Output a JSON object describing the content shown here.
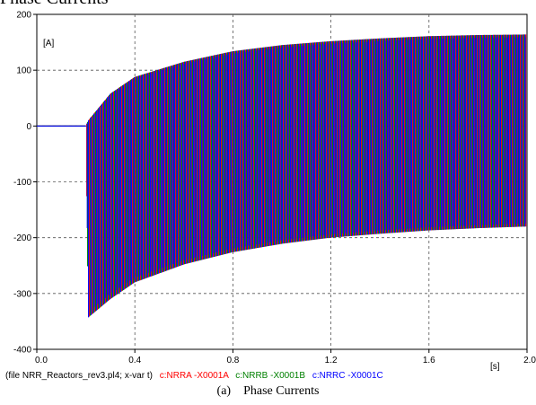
{
  "page": {
    "title": "Phase Currents",
    "caption_tag": "(a)",
    "caption_text": "Phase Currents"
  },
  "chart_data": {
    "type": "line",
    "title": "",
    "ylabel": "[A]",
    "xlabel": "[s]",
    "xlim": [
      0.0,
      2.0
    ],
    "ylim": [
      -400,
      200
    ],
    "x_ticks": [
      0.0,
      0.4,
      0.8,
      1.2,
      1.6,
      2.0
    ],
    "x_tick_labels": [
      "0.0",
      "0.4",
      "0.8",
      "1.2",
      "1.6",
      "2.0"
    ],
    "y_ticks": [
      -400,
      -300,
      -200,
      -100,
      0,
      100,
      200
    ],
    "y_tick_labels": [
      "-400",
      "-300",
      "-200",
      "-100",
      "0",
      "100",
      "200"
    ],
    "grid": true,
    "legend_placement": "bottom",
    "file_label": "(file NRR_Reactors_rev3.pl4; x-var t)",
    "event_time": 0.2,
    "series": [
      {
        "name": "c:NRRA -X0001A",
        "color": "#ff0000"
      },
      {
        "name": "c:NRRB -X0001B",
        "color": "#008000"
      },
      {
        "name": "c:NRRC -X0001C",
        "color": "#0000ff"
      }
    ],
    "envelope": {
      "x": [
        0.2,
        0.21,
        0.3,
        0.4,
        0.6,
        0.8,
        1.0,
        1.2,
        1.4,
        1.6,
        1.8,
        2.0
      ],
      "upper": [
        0,
        10,
        58,
        88,
        115,
        134,
        145,
        152,
        157,
        161,
        163,
        164
      ],
      "lower": [
        0,
        -343,
        -310,
        -280,
        -248,
        -226,
        -211,
        -200,
        -193,
        -187,
        -183,
        -180
      ]
    }
  }
}
